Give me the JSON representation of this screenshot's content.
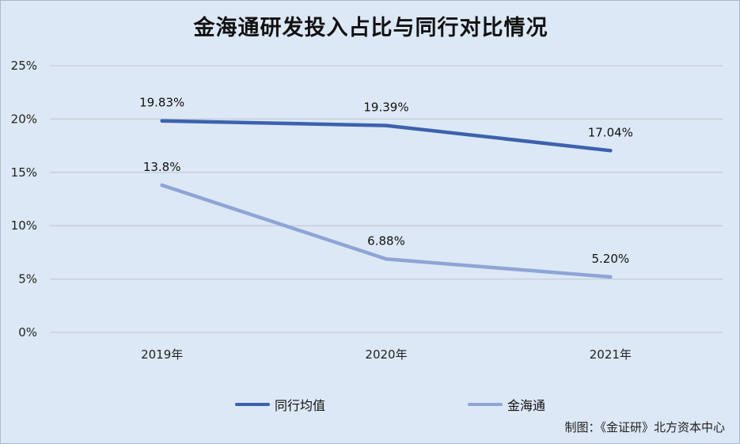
{
  "title": "金海通研发投入占比与同行对比情况",
  "credit": "制图：《金证研》北方资本中心",
  "legend": [
    {
      "label": "同行均值",
      "color": "#3c62ad"
    },
    {
      "label": "金海通",
      "color": "#8fa4d6"
    }
  ],
  "chart_data": {
    "type": "line",
    "categories": [
      "2019年",
      "2020年",
      "2021年"
    ],
    "y_ticks": [
      "0%",
      "5%",
      "10%",
      "15%",
      "20%",
      "25%"
    ],
    "ylim": [
      0,
      25
    ],
    "grid": true,
    "legend_position": "bottom",
    "series": [
      {
        "name": "同行均值",
        "values": [
          19.83,
          19.39,
          17.04
        ],
        "labels": [
          "19.83%",
          "19.39%",
          "17.04%"
        ],
        "color": "#3c62ad"
      },
      {
        "name": "金海通",
        "values": [
          13.8,
          6.88,
          5.2
        ],
        "labels": [
          "13.8%",
          "6.88%",
          "5.20%"
        ],
        "color": "#8fa4d6"
      }
    ]
  }
}
